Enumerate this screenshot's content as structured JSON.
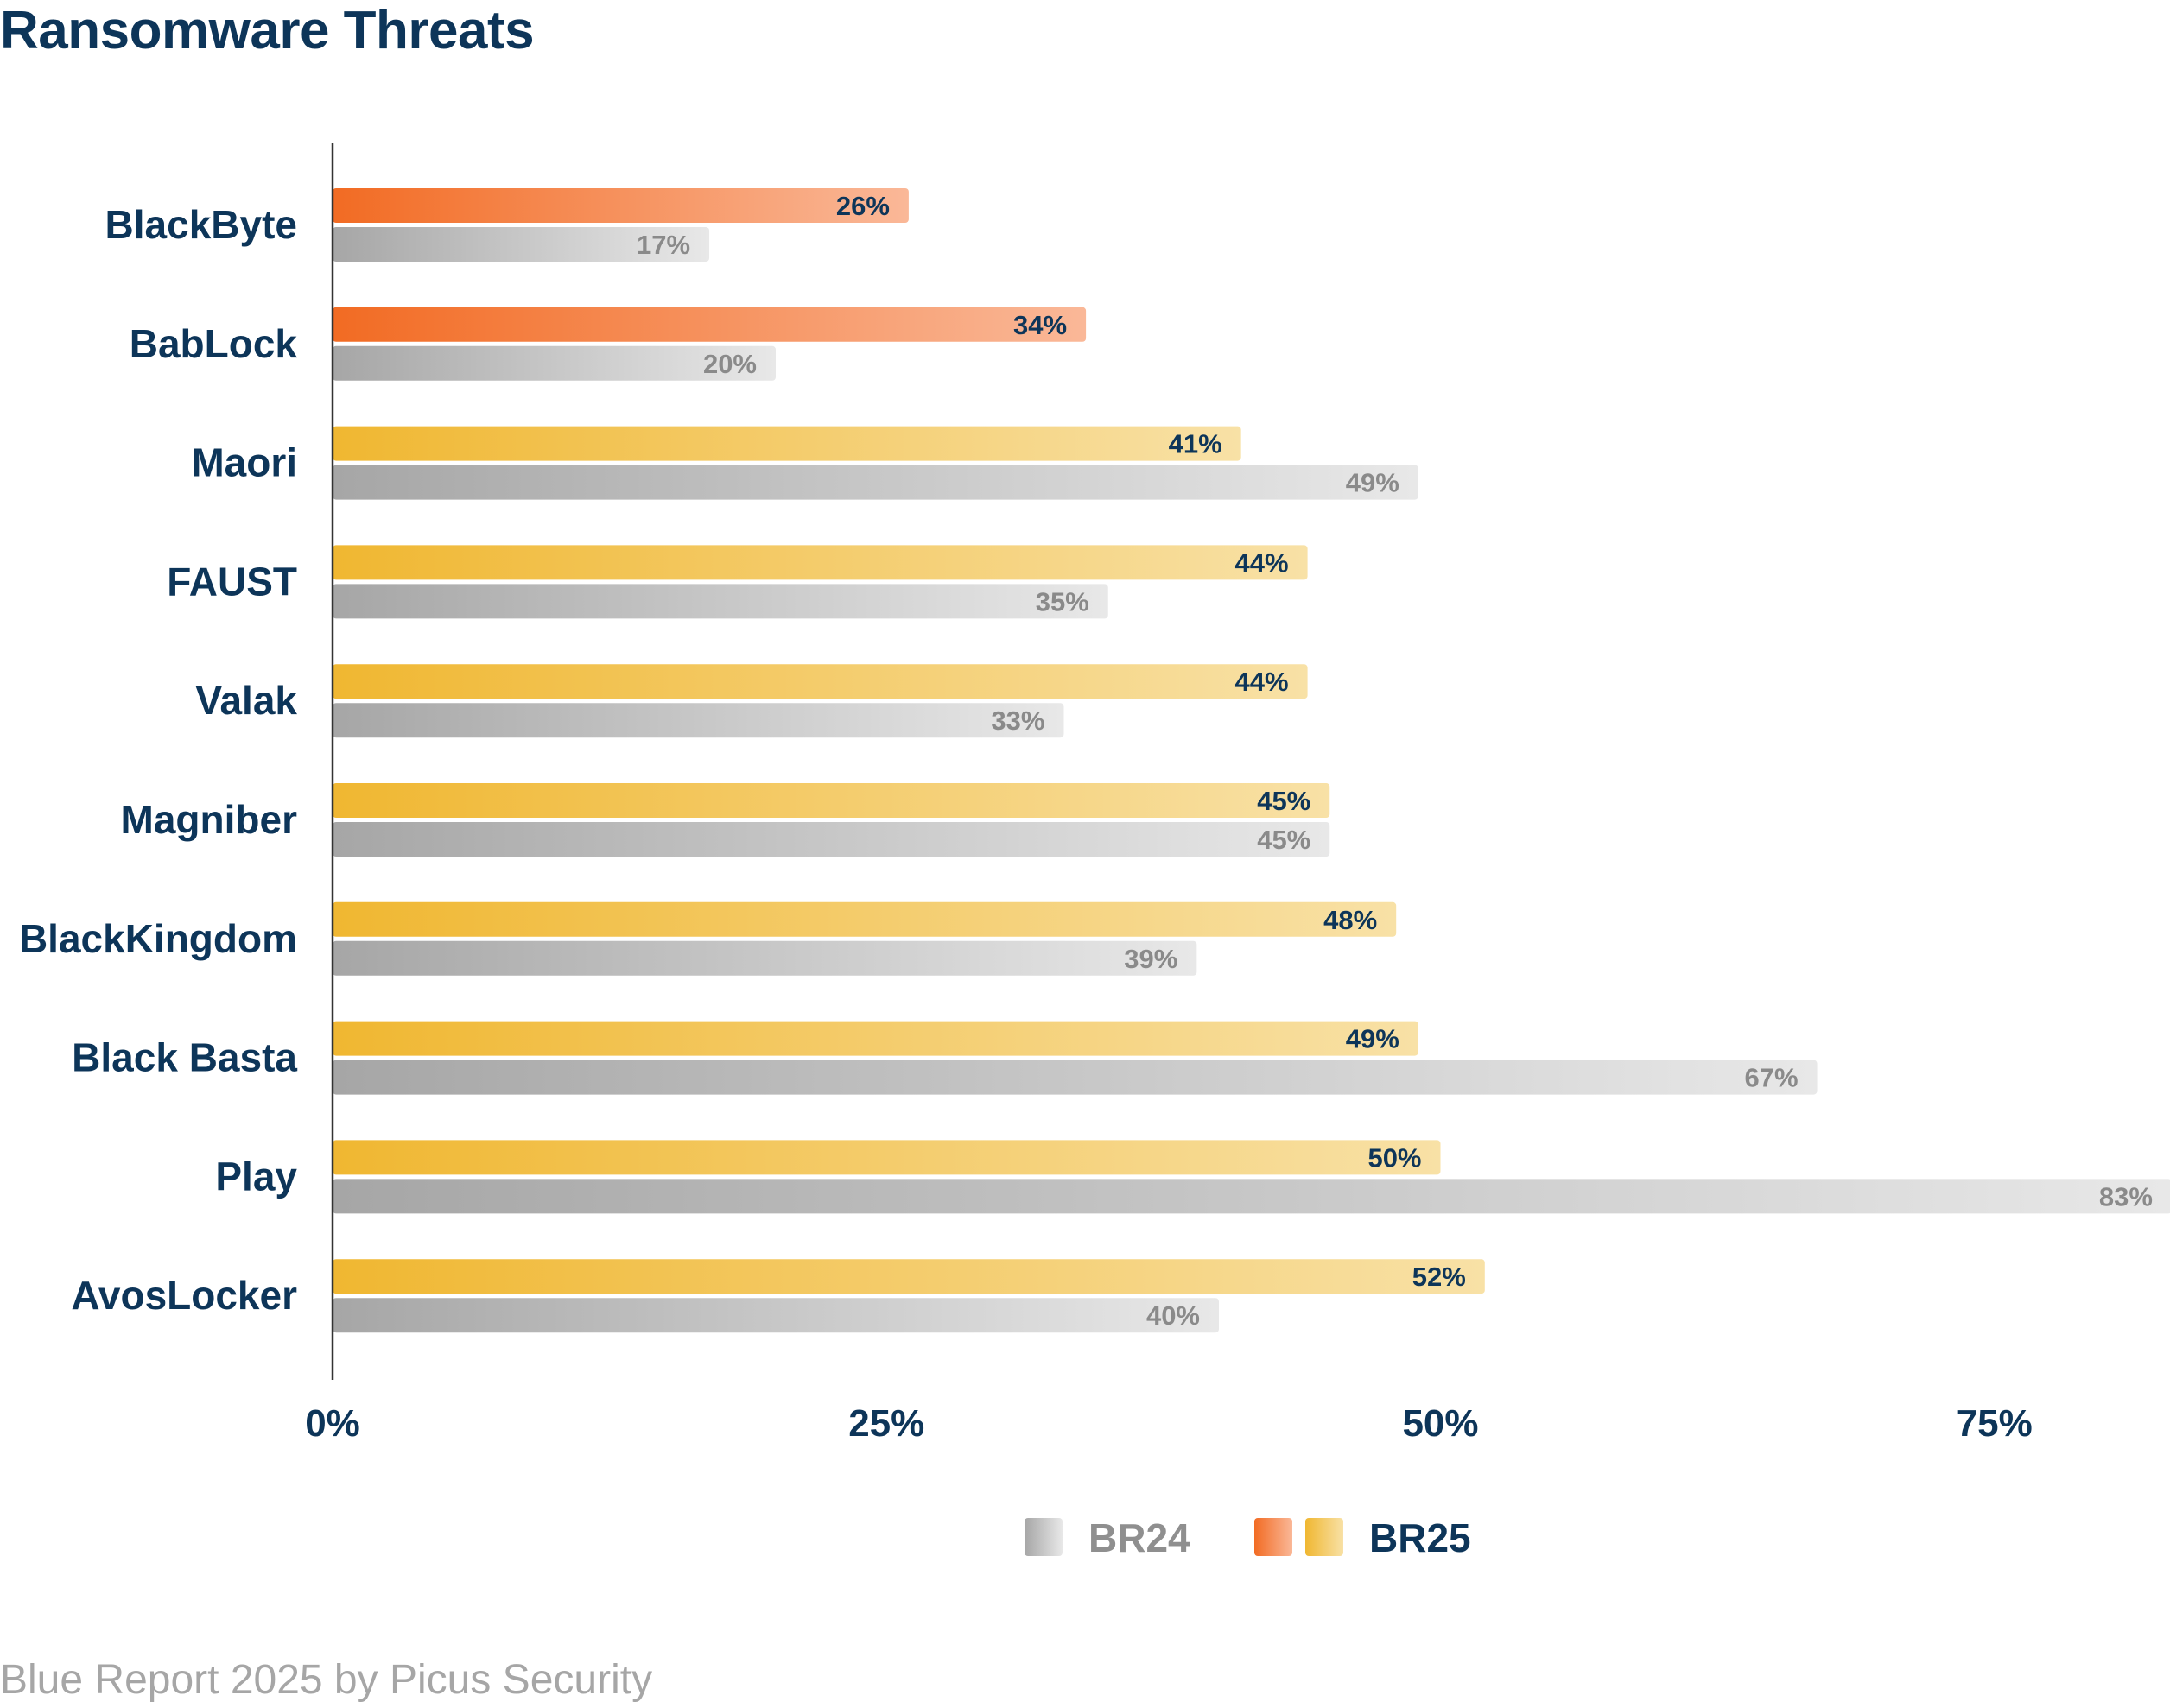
{
  "title": "Ransomware Threats",
  "footer": "Blue Report 2025 by Picus Security",
  "colors": {
    "title": "#0d3559",
    "br24_dark": "#a6a6a6",
    "br24_light": "#e8e8e8",
    "orange_dark": "#f26b23",
    "orange_light": "#fab898",
    "yellow_dark": "#f0b731",
    "yellow_light": "#f8e1a6",
    "axis": "#333333"
  },
  "chart_data": {
    "type": "bar",
    "orientation": "horizontal",
    "title": "Ransomware Threats",
    "categories": [
      "BlackByte",
      "BabLock",
      "Maori",
      "FAUST",
      "Valak",
      "Magniber",
      "BlackKingdom",
      "Black Basta",
      "Play",
      "AvosLocker"
    ],
    "series": [
      {
        "name": "BR25",
        "values": [
          26,
          34,
          41,
          44,
          44,
          45,
          48,
          49,
          50,
          52
        ],
        "labels": [
          "26%",
          "34%",
          "41%",
          "44%",
          "44%",
          "45%",
          "48%",
          "49%",
          "50%",
          "52%"
        ],
        "styles": [
          "orange",
          "orange",
          "yellow",
          "yellow",
          "yellow",
          "yellow",
          "yellow",
          "yellow",
          "yellow",
          "yellow"
        ]
      },
      {
        "name": "BR24",
        "values": [
          17,
          20,
          49,
          35,
          33,
          45,
          39,
          67,
          83,
          40
        ],
        "labels": [
          "17%",
          "20%",
          "49%",
          "35%",
          "33%",
          "45%",
          "39%",
          "67%",
          "83%",
          "40%"
        ]
      }
    ],
    "xlim": [
      0,
      83
    ],
    "xticks": [
      0,
      25,
      50,
      75
    ],
    "xtick_labels": [
      "0%",
      "25%",
      "50%",
      "75%"
    ],
    "xlabel": "",
    "ylabel": "",
    "grid": false,
    "legend": {
      "position": "bottom-center",
      "entries": [
        {
          "label": "BR24",
          "swatches": [
            "gray"
          ]
        },
        {
          "label": "BR25",
          "swatches": [
            "orange",
            "yellow"
          ]
        }
      ]
    }
  }
}
